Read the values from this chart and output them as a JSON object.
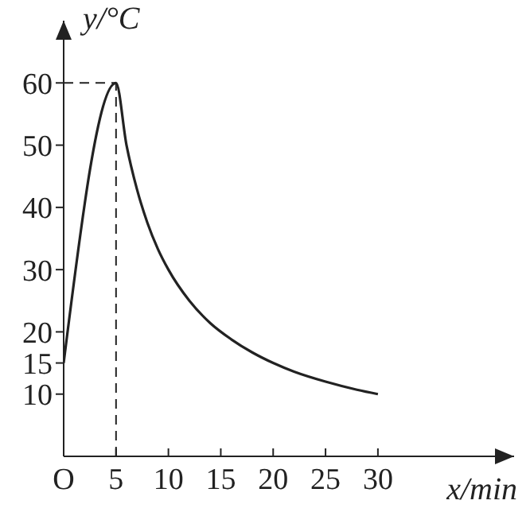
{
  "chart_data": {
    "type": "line",
    "xlabel": "x/min",
    "ylabel": "y/°C",
    "x": [
      0,
      5,
      6,
      7,
      8,
      9,
      10,
      12,
      14,
      16,
      18,
      20,
      22,
      25,
      28,
      30
    ],
    "series": [
      {
        "color": "#222222",
        "values": [
          15,
          60,
          50,
          42.9,
          37.5,
          33.3,
          30,
          25,
          21.4,
          18.8,
          16.7,
          15,
          13.6,
          12,
          10.7,
          10
        ]
      }
    ],
    "xlim": [
      0,
      43
    ],
    "ylim": [
      0,
      70
    ],
    "xticks": [
      {
        "value": 0,
        "label": "O"
      },
      5,
      10,
      15,
      20,
      25,
      30
    ],
    "yticks": [
      10,
      15,
      20,
      30,
      40,
      50,
      60
    ],
    "ref_lines": [
      {
        "axis": "x",
        "value": 5,
        "line_style": "dashed",
        "color": "#222222"
      },
      {
        "axis": "y",
        "value": 60,
        "line_style": "dashed",
        "color": "#222222"
      }
    ],
    "grid": false,
    "legend": false,
    "marker": "none",
    "line_style": "solid"
  }
}
